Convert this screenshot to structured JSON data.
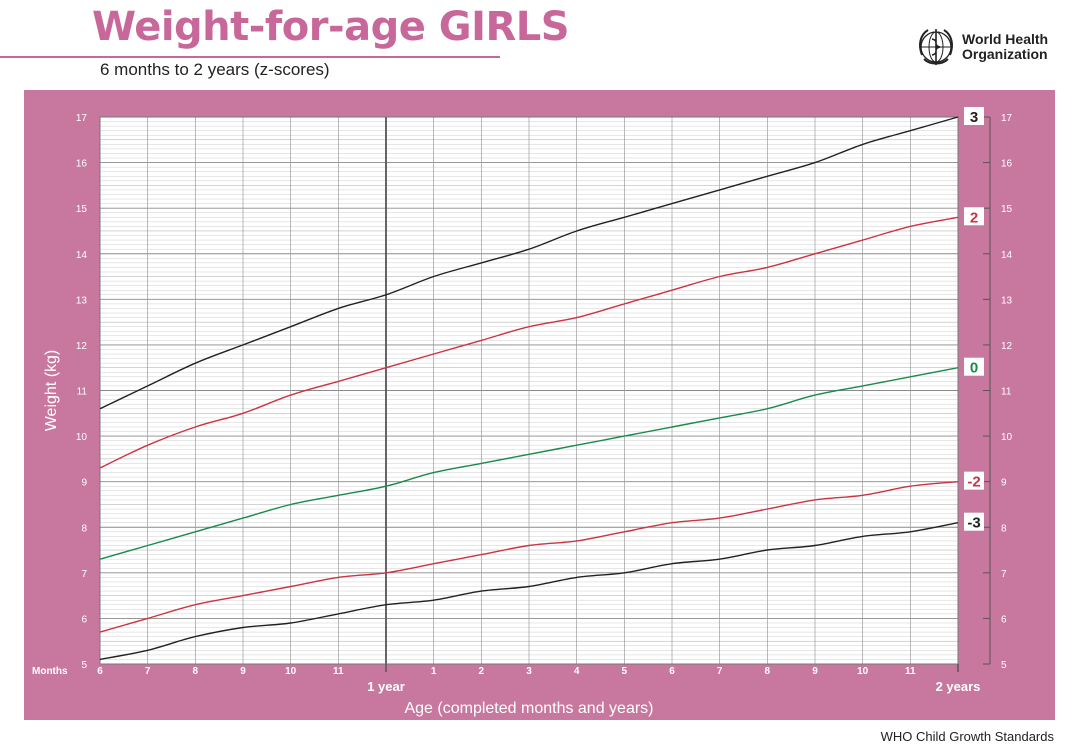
{
  "header": {
    "title": "Weight-for-age GIRLS",
    "subtitle": "6 months to 2 years (z-scores)",
    "org_line1": "World Health",
    "org_line2": "Organization"
  },
  "footer": {
    "text": "WHO Child Growth Standards"
  },
  "colors": {
    "panel": "#c8789f",
    "title": "#c8689a",
    "z3": "#222222",
    "z2": "#cc3344",
    "z0": "#1a8a4a"
  },
  "chart_data": {
    "type": "line",
    "xlabel": "Age (completed months and years)",
    "ylabel": "Weight (kg)",
    "x_prefix_label": "Months",
    "xlim": [
      6,
      24
    ],
    "ylim": [
      5,
      17
    ],
    "grid": true,
    "x_ticks": [
      {
        "x": 6,
        "label": "6"
      },
      {
        "x": 7,
        "label": "7"
      },
      {
        "x": 8,
        "label": "8"
      },
      {
        "x": 9,
        "label": "9"
      },
      {
        "x": 10,
        "label": "10"
      },
      {
        "x": 11,
        "label": "11"
      },
      {
        "x": 13,
        "label": "1"
      },
      {
        "x": 14,
        "label": "2"
      },
      {
        "x": 15,
        "label": "3"
      },
      {
        "x": 16,
        "label": "4"
      },
      {
        "x": 17,
        "label": "5"
      },
      {
        "x": 18,
        "label": "6"
      },
      {
        "x": 19,
        "label": "7"
      },
      {
        "x": 20,
        "label": "8"
      },
      {
        "x": 21,
        "label": "9"
      },
      {
        "x": 22,
        "label": "10"
      },
      {
        "x": 23,
        "label": "11"
      }
    ],
    "year_marks": [
      {
        "x": 12,
        "label": "1 year"
      },
      {
        "x": 24,
        "label": "2 years"
      }
    ],
    "y_ticks": [
      5,
      6,
      7,
      8,
      9,
      10,
      11,
      12,
      13,
      14,
      15,
      16,
      17
    ],
    "x": [
      6,
      7,
      8,
      9,
      10,
      11,
      12,
      13,
      14,
      15,
      16,
      17,
      18,
      19,
      20,
      21,
      22,
      23,
      24
    ],
    "series": [
      {
        "name": "3",
        "color": "#222222",
        "values": [
          10.6,
          11.1,
          11.6,
          12.0,
          12.4,
          12.8,
          13.1,
          13.5,
          13.8,
          14.1,
          14.5,
          14.8,
          15.1,
          15.4,
          15.7,
          16.0,
          16.4,
          16.7,
          17.0
        ]
      },
      {
        "name": "2",
        "color": "#cc3344",
        "values": [
          9.3,
          9.8,
          10.2,
          10.5,
          10.9,
          11.2,
          11.5,
          11.8,
          12.1,
          12.4,
          12.6,
          12.9,
          13.2,
          13.5,
          13.7,
          14.0,
          14.3,
          14.6,
          14.8
        ]
      },
      {
        "name": "0",
        "color": "#1a8a4a",
        "values": [
          7.3,
          7.6,
          7.9,
          8.2,
          8.5,
          8.7,
          8.9,
          9.2,
          9.4,
          9.6,
          9.8,
          10.0,
          10.2,
          10.4,
          10.6,
          10.9,
          11.1,
          11.3,
          11.5
        ]
      },
      {
        "name": "-2",
        "color": "#cc3344",
        "values": [
          5.7,
          6.0,
          6.3,
          6.5,
          6.7,
          6.9,
          7.0,
          7.2,
          7.4,
          7.6,
          7.7,
          7.9,
          8.1,
          8.2,
          8.4,
          8.6,
          8.7,
          8.9,
          9.0
        ]
      },
      {
        "name": "-3",
        "color": "#222222",
        "values": [
          5.1,
          5.3,
          5.6,
          5.8,
          5.9,
          6.1,
          6.3,
          6.4,
          6.6,
          6.7,
          6.9,
          7.0,
          7.2,
          7.3,
          7.5,
          7.6,
          7.8,
          7.9,
          8.1
        ]
      }
    ]
  }
}
